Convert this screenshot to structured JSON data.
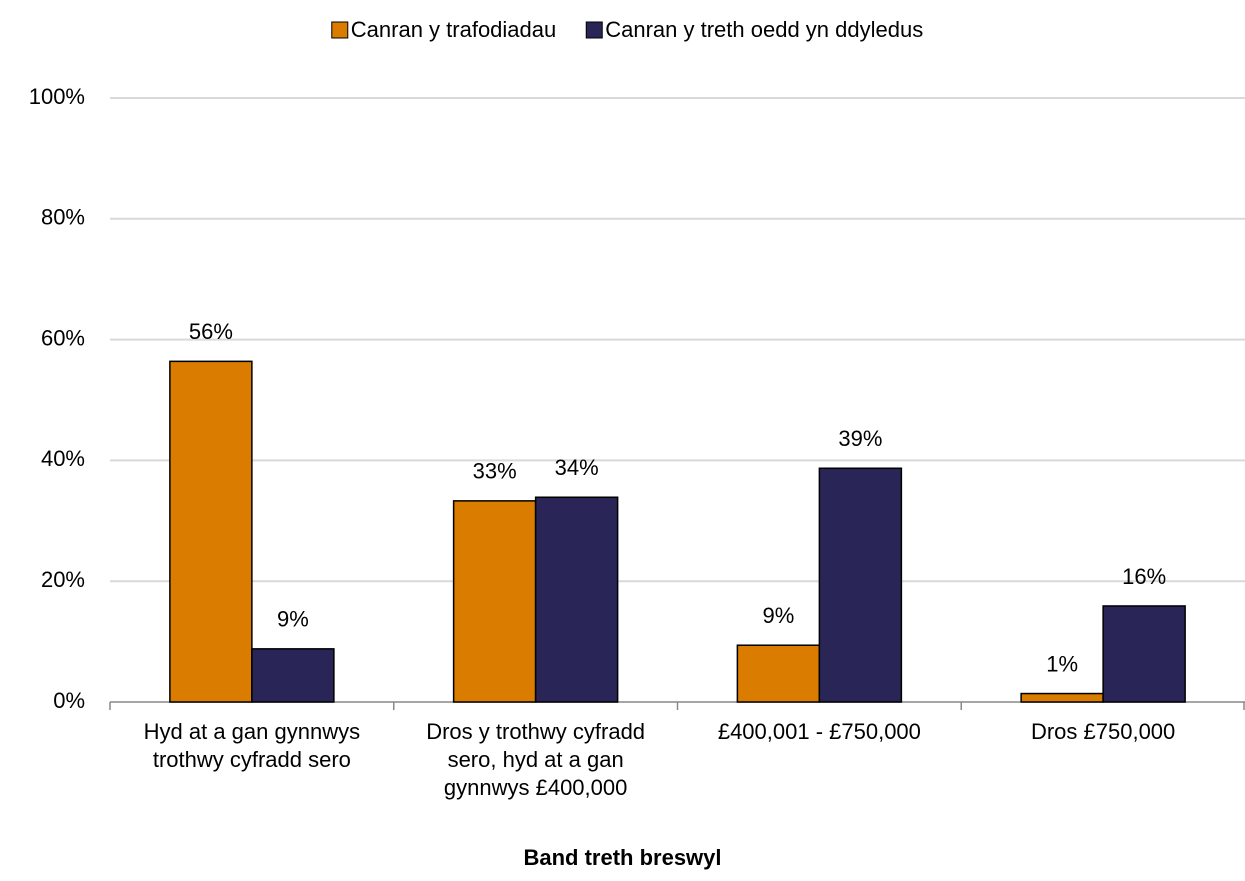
{
  "chart_data": {
    "type": "bar",
    "categories": [
      "Hyd at a gan gynnwys trothwy cyfradd sero",
      "Dros y trothwy cyfradd sero, hyd at a gan gynnwys £400,000",
      "£400,001 - £750,000",
      "Dros £750,000"
    ],
    "series": [
      {
        "name": "Canran y trafodiadau",
        "color": "#d97c00",
        "values": [
          56.4,
          33.3,
          9.4,
          1.4
        ],
        "value_labels": [
          "56%",
          "33%",
          "9%",
          "1%"
        ]
      },
      {
        "name": "Canran y treth oedd yn ddyledus",
        "color": "#2a2557",
        "values": [
          8.8,
          33.9,
          38.7,
          15.9
        ],
        "value_labels": [
          "9%",
          "34%",
          "39%",
          "16%"
        ]
      }
    ],
    "x_label": "Band treth breswyl",
    "ylim": [
      0,
      100
    ],
    "yticks": [
      {
        "value": 0,
        "label": "0%"
      },
      {
        "value": 20,
        "label": "20%"
      },
      {
        "value": 40,
        "label": "40%"
      },
      {
        "value": 60,
        "label": "60%"
      },
      {
        "value": 80,
        "label": "80%"
      },
      {
        "value": 100,
        "label": "100%"
      }
    ],
    "grid": true,
    "legend": "top"
  }
}
